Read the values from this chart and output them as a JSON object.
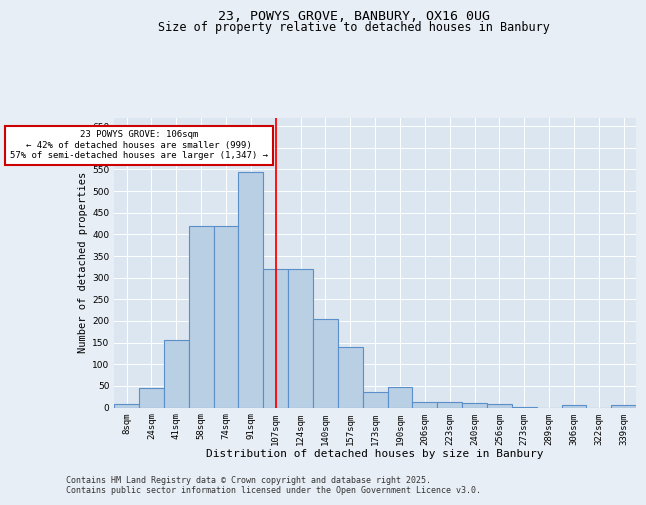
{
  "title1": "23, POWYS GROVE, BANBURY, OX16 0UG",
  "title2": "Size of property relative to detached houses in Banbury",
  "xlabel": "Distribution of detached houses by size in Banbury",
  "ylabel": "Number of detached properties",
  "categories": [
    "8sqm",
    "24sqm",
    "41sqm",
    "58sqm",
    "74sqm",
    "91sqm",
    "107sqm",
    "124sqm",
    "140sqm",
    "157sqm",
    "173sqm",
    "190sqm",
    "206sqm",
    "223sqm",
    "240sqm",
    "256sqm",
    "273sqm",
    "289sqm",
    "306sqm",
    "322sqm",
    "339sqm"
  ],
  "values": [
    8,
    45,
    155,
    420,
    420,
    545,
    320,
    320,
    205,
    140,
    35,
    48,
    13,
    13,
    10,
    8,
    2,
    0,
    5,
    0,
    6
  ],
  "bar_color": "#b8cfe4",
  "bar_edge_color": "#5b8fc9",
  "bar_edge_width": 0.8,
  "red_line_x": 6.0,
  "annotation_text": "23 POWYS GROVE: 106sqm\n← 42% of detached houses are smaller (999)\n57% of semi-detached houses are larger (1,347) →",
  "annotation_box_color": "#ffffff",
  "annotation_box_edge_color": "#cc0000",
  "ylim": [
    0,
    670
  ],
  "yticks": [
    0,
    50,
    100,
    150,
    200,
    250,
    300,
    350,
    400,
    450,
    500,
    550,
    600,
    650
  ],
  "bg_color": "#e8eef5",
  "plot_bg_color": "#dce6f0",
  "footer_line1": "Contains HM Land Registry data © Crown copyright and database right 2025.",
  "footer_line2": "Contains public sector information licensed under the Open Government Licence v3.0.",
  "title1_fontsize": 9.5,
  "title2_fontsize": 8.5,
  "tick_fontsize": 6.5,
  "xlabel_fontsize": 8,
  "ylabel_fontsize": 7.5,
  "annotation_fontsize": 6.5,
  "footer_fontsize": 6
}
